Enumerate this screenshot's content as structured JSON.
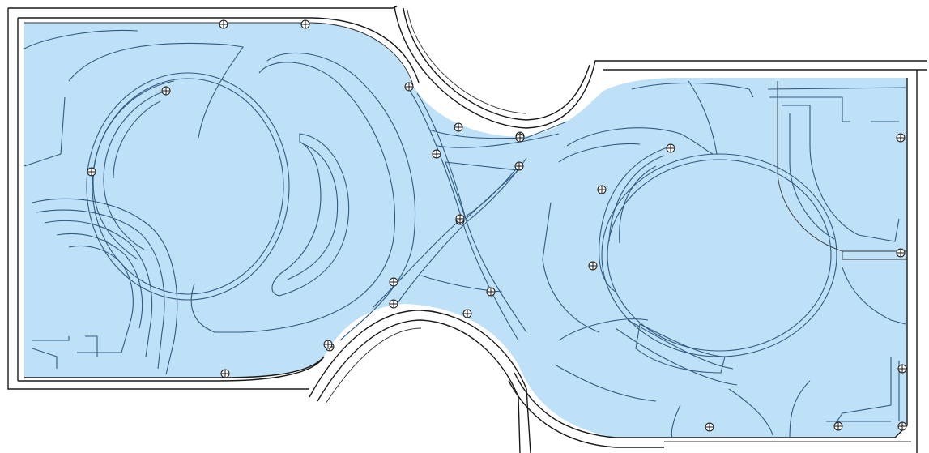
{
  "colors": {
    "floor_fill": "#bfe1f7",
    "contour_stroke": "#2f5a80",
    "wall_stroke": "#1a1a1a",
    "background": "#ffffff"
  },
  "elements": {
    "sensor_marker_icon": "circle-cross-icon",
    "sensor_marker_count": 28
  }
}
